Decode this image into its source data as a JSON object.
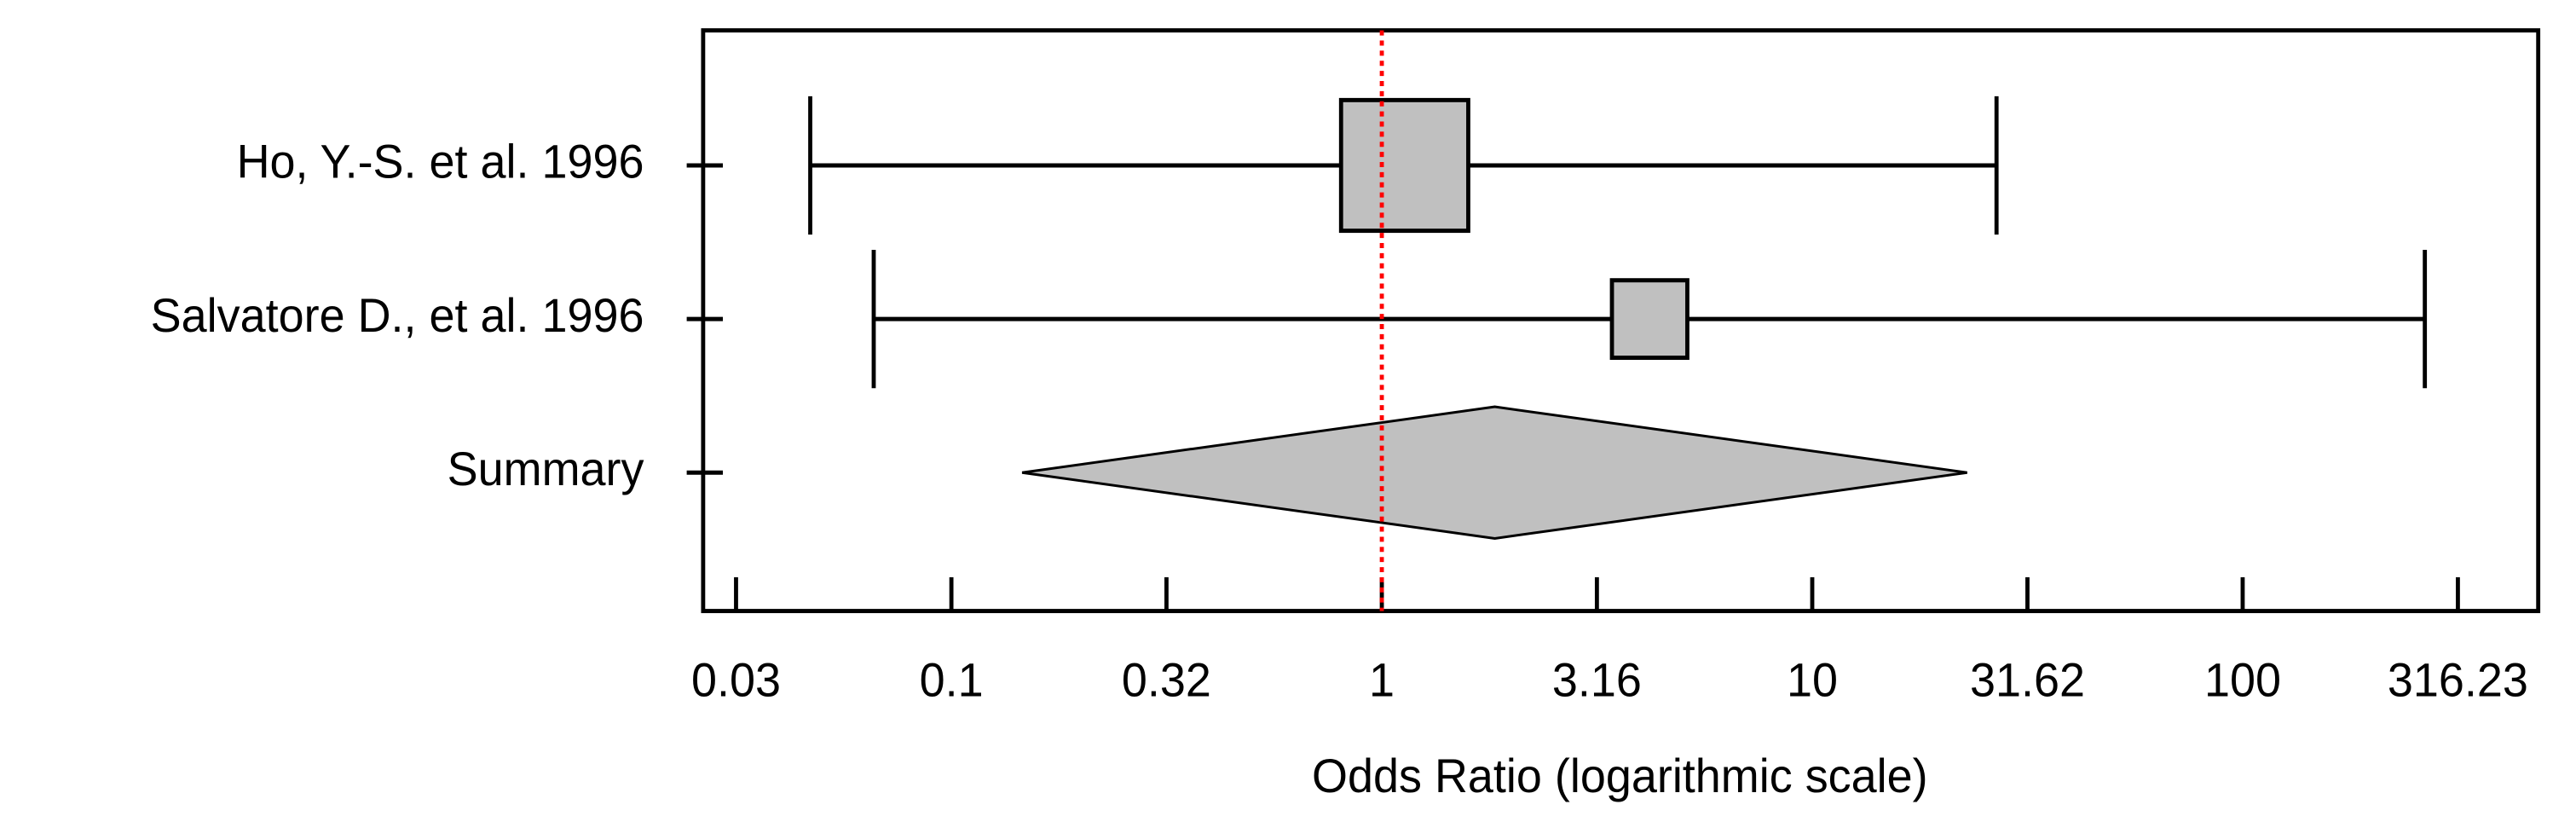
{
  "chart_data": {
    "type": "forest",
    "categories": [
      "Ho, Y.-S. et al. 1996",
      "Salvatore D., et al. 1996"
    ],
    "values": [
      1.13,
      4.19
    ],
    "lower": [
      0.047,
      0.066
    ],
    "upper": [
      26.8,
      265
    ],
    "weights": [
      74,
      26
    ],
    "summary": {
      "label": "Summary",
      "value": 1.83,
      "lower": 0.146,
      "upper": 22.9
    },
    "xlabel": "Odds Ratio (logarithmic scale)",
    "xscale": "log",
    "xlim": [
      0.0265,
      486
    ],
    "xticks": [
      {
        "value": 0.0316,
        "label": "0.03"
      },
      0.1,
      {
        "value": 0.316,
        "label": "0.32"
      },
      1,
      3.16,
      10,
      31.62,
      100,
      316.23
    ],
    "ref_line": 1,
    "ref_color": "#ff0000",
    "color": "#c0c0c0"
  }
}
